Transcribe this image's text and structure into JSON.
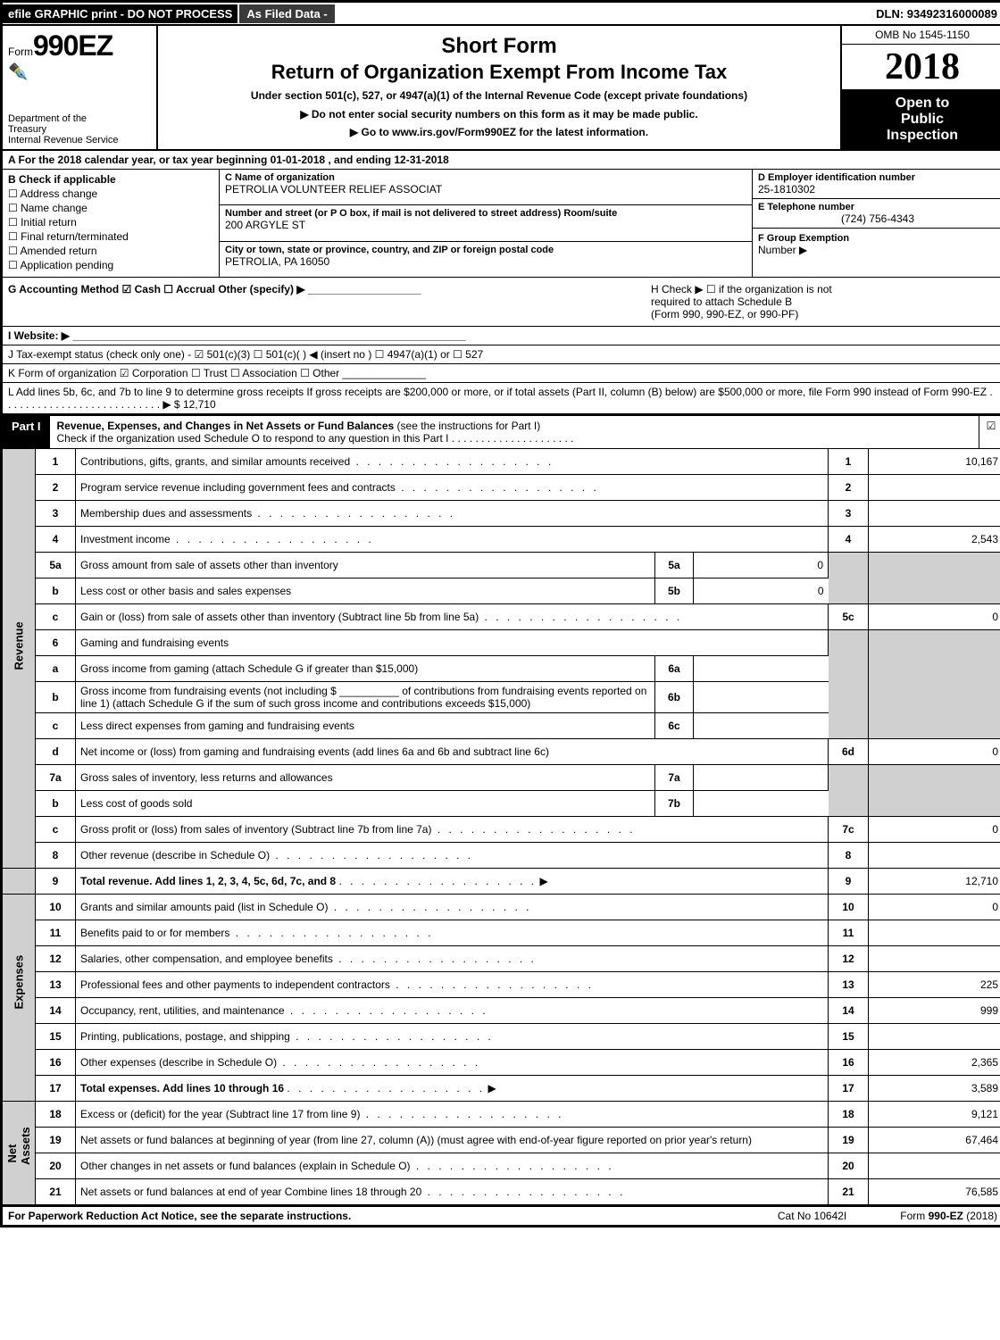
{
  "top": {
    "efile": "efile GRAPHIC print - DO NOT PROCESS",
    "asfiled": "As Filed Data -",
    "dln": "DLN: 93492316000089"
  },
  "header": {
    "form_prefix": "Form",
    "form_number": "990EZ",
    "dept1": "Department of the",
    "dept2": "Treasury",
    "dept3": "Internal Revenue Service",
    "short_form": "Short Form",
    "title": "Return of Organization Exempt From Income Tax",
    "subtitle": "Under section 501(c), 527, or 4947(a)(1) of the Internal Revenue Code (except private foundations)",
    "instr1": "▶ Do not enter social security numbers on this form as it may be made public.",
    "instr2": "▶ Go to www.irs.gov/Form990EZ for the latest information.",
    "omb": "OMB No 1545-1150",
    "year": "2018",
    "open1": "Open to",
    "open2": "Public",
    "open3": "Inspection"
  },
  "row_a": "A  For the 2018 calendar year, or tax year beginning 01-01-2018             , and ending 12-31-2018",
  "block_b": {
    "title": "B  Check if applicable",
    "items": [
      "Address change",
      "Name change",
      "Initial return",
      "Final return/terminated",
      "Amended return",
      "Application pending"
    ]
  },
  "block_c": {
    "c_label": "C Name of organization",
    "c_value": "PETROLIA VOLUNTEER RELIEF ASSOCIAT",
    "street_label": "Number and street (or P O box, if mail is not delivered to street address)  Room/suite",
    "street_value": "200 ARGYLE ST",
    "city_label": "City or town, state or province, country, and ZIP or foreign postal code",
    "city_value": "PETROLIA, PA  16050"
  },
  "block_d": {
    "d_label": "D Employer identification number",
    "d_value": "25-1810302",
    "e_label": "E Telephone number",
    "e_value": "(724) 756-4343",
    "f_label": "F Group Exemption",
    "f_label2": "Number   ▶"
  },
  "row_g": {
    "left": "G Accounting Method     ☑ Cash   ☐ Accrual   Other (specify) ▶ ___________________",
    "right1": "H    Check ▶   ☐  if the organization is not",
    "right2": "required to attach Schedule B",
    "right3": "(Form 990, 990-EZ, or 990-PF)"
  },
  "row_i": "I Website: ▶ __________________________________________________________________",
  "row_j": "J Tax-exempt status (check only one) -  ☑ 501(c)(3) ☐ 501(c)( ) ◀ (insert no ) ☐ 4947(a)(1) or ☐ 527",
  "row_k": "K Form of organization     ☑ Corporation   ☐ Trust   ☐ Association   ☐ Other  ______________",
  "row_l": "L Add lines 5b, 6c, and 7b to line 9 to determine gross receipts  If gross receipts are $200,000 or more, or if total assets (Part II, column (B) below) are $500,000 or more, file Form 990 instead of Form 990-EZ . . . . . . . . . . . . . . . . . . . . . . . . . . . ▶ $ 12,710",
  "part1": {
    "label": "Part I",
    "title": "Revenue, Expenses, and Changes in Net Assets or Fund Balances",
    "sub": " (see the instructions for Part I)",
    "check_line": "Check if the organization used Schedule O to respond to any question in this Part I . . . . . . . . . . . . . . . . . . . . .",
    "check": "☑"
  },
  "sections": {
    "revenue": "Revenue",
    "expenses": "Expenses",
    "netassets": "Net Assets"
  },
  "lines": {
    "l1": {
      "n": "1",
      "d": "Contributions, gifts, grants, and similar amounts received",
      "rn": "1",
      "rv": "10,167"
    },
    "l2": {
      "n": "2",
      "d": "Program service revenue including government fees and contracts",
      "rn": "2",
      "rv": ""
    },
    "l3": {
      "n": "3",
      "d": "Membership dues and assessments",
      "rn": "3",
      "rv": ""
    },
    "l4": {
      "n": "4",
      "d": "Investment income",
      "rn": "4",
      "rv": "2,543"
    },
    "l5a": {
      "n": "5a",
      "d": "Gross amount from sale of assets other than inventory",
      "sn": "5a",
      "sv": "0"
    },
    "l5b": {
      "n": "b",
      "d": "Less  cost or other basis and sales expenses",
      "sn": "5b",
      "sv": "0"
    },
    "l5c": {
      "n": "c",
      "d": "Gain or (loss) from sale of assets other than inventory (Subtract line 5b from line 5a)",
      "rn": "5c",
      "rv": "0"
    },
    "l6": {
      "n": "6",
      "d": "Gaming and fundraising events"
    },
    "l6a": {
      "n": "a",
      "d": "Gross income from gaming (attach Schedule G if greater than $15,000)",
      "sn": "6a",
      "sv": ""
    },
    "l6b": {
      "n": "b",
      "d": "Gross income from fundraising events (not including $ __________ of contributions from fundraising events reported on line 1) (attach Schedule G if the sum of such gross income and contributions exceeds $15,000)",
      "sn": "6b",
      "sv": ""
    },
    "l6c": {
      "n": "c",
      "d": "Less  direct expenses from gaming and fundraising events",
      "sn": "6c",
      "sv": ""
    },
    "l6d": {
      "n": "d",
      "d": "Net income or (loss) from gaming and fundraising events (add lines 6a and 6b and subtract line 6c)",
      "rn": "6d",
      "rv": "0"
    },
    "l7a": {
      "n": "7a",
      "d": "Gross sales of inventory, less returns and allowances",
      "sn": "7a",
      "sv": ""
    },
    "l7b": {
      "n": "b",
      "d": "Less  cost of goods sold",
      "sn": "7b",
      "sv": ""
    },
    "l7c": {
      "n": "c",
      "d": "Gross profit or (loss) from sales of inventory (Subtract line 7b from line 7a)",
      "rn": "7c",
      "rv": "0"
    },
    "l8": {
      "n": "8",
      "d": "Other revenue (describe in Schedule O)",
      "rn": "8",
      "rv": ""
    },
    "l9": {
      "n": "9",
      "d": "Total revenue. Add lines 1, 2, 3, 4, 5c, 6d, 7c, and 8",
      "rn": "9",
      "rv": "12,710",
      "bold": true,
      "arrow": "▶"
    },
    "l10": {
      "n": "10",
      "d": "Grants and similar amounts paid (list in Schedule O)",
      "rn": "10",
      "rv": "0"
    },
    "l11": {
      "n": "11",
      "d": "Benefits paid to or for members",
      "rn": "11",
      "rv": ""
    },
    "l12": {
      "n": "12",
      "d": "Salaries, other compensation, and employee benefits",
      "rn": "12",
      "rv": ""
    },
    "l13": {
      "n": "13",
      "d": "Professional fees and other payments to independent contractors",
      "rn": "13",
      "rv": "225"
    },
    "l14": {
      "n": "14",
      "d": "Occupancy, rent, utilities, and maintenance",
      "rn": "14",
      "rv": "999"
    },
    "l15": {
      "n": "15",
      "d": "Printing, publications, postage, and shipping",
      "rn": "15",
      "rv": ""
    },
    "l16": {
      "n": "16",
      "d": "Other expenses (describe in Schedule O)",
      "rn": "16",
      "rv": "2,365"
    },
    "l17": {
      "n": "17",
      "d": "Total expenses. Add lines 10 through 16",
      "rn": "17",
      "rv": "3,589",
      "bold": true,
      "arrow": "▶"
    },
    "l18": {
      "n": "18",
      "d": "Excess or (deficit) for the year (Subtract line 17 from line 9)",
      "rn": "18",
      "rv": "9,121"
    },
    "l19": {
      "n": "19",
      "d": "Net assets or fund balances at beginning of year (from line 27, column (A)) (must agree with end-of-year figure reported on prior year's return)",
      "rn": "19",
      "rv": "67,464"
    },
    "l20": {
      "n": "20",
      "d": "Other changes in net assets or fund balances (explain in Schedule O)",
      "rn": "20",
      "rv": ""
    },
    "l21": {
      "n": "21",
      "d": "Net assets or fund balances at end of year  Combine lines 18 through 20",
      "rn": "21",
      "rv": "76,585"
    }
  },
  "footer": {
    "left": "For Paperwork Reduction Act Notice, see the separate instructions.",
    "mid": "Cat No 10642I",
    "right": "Form 990-EZ (2018)"
  }
}
